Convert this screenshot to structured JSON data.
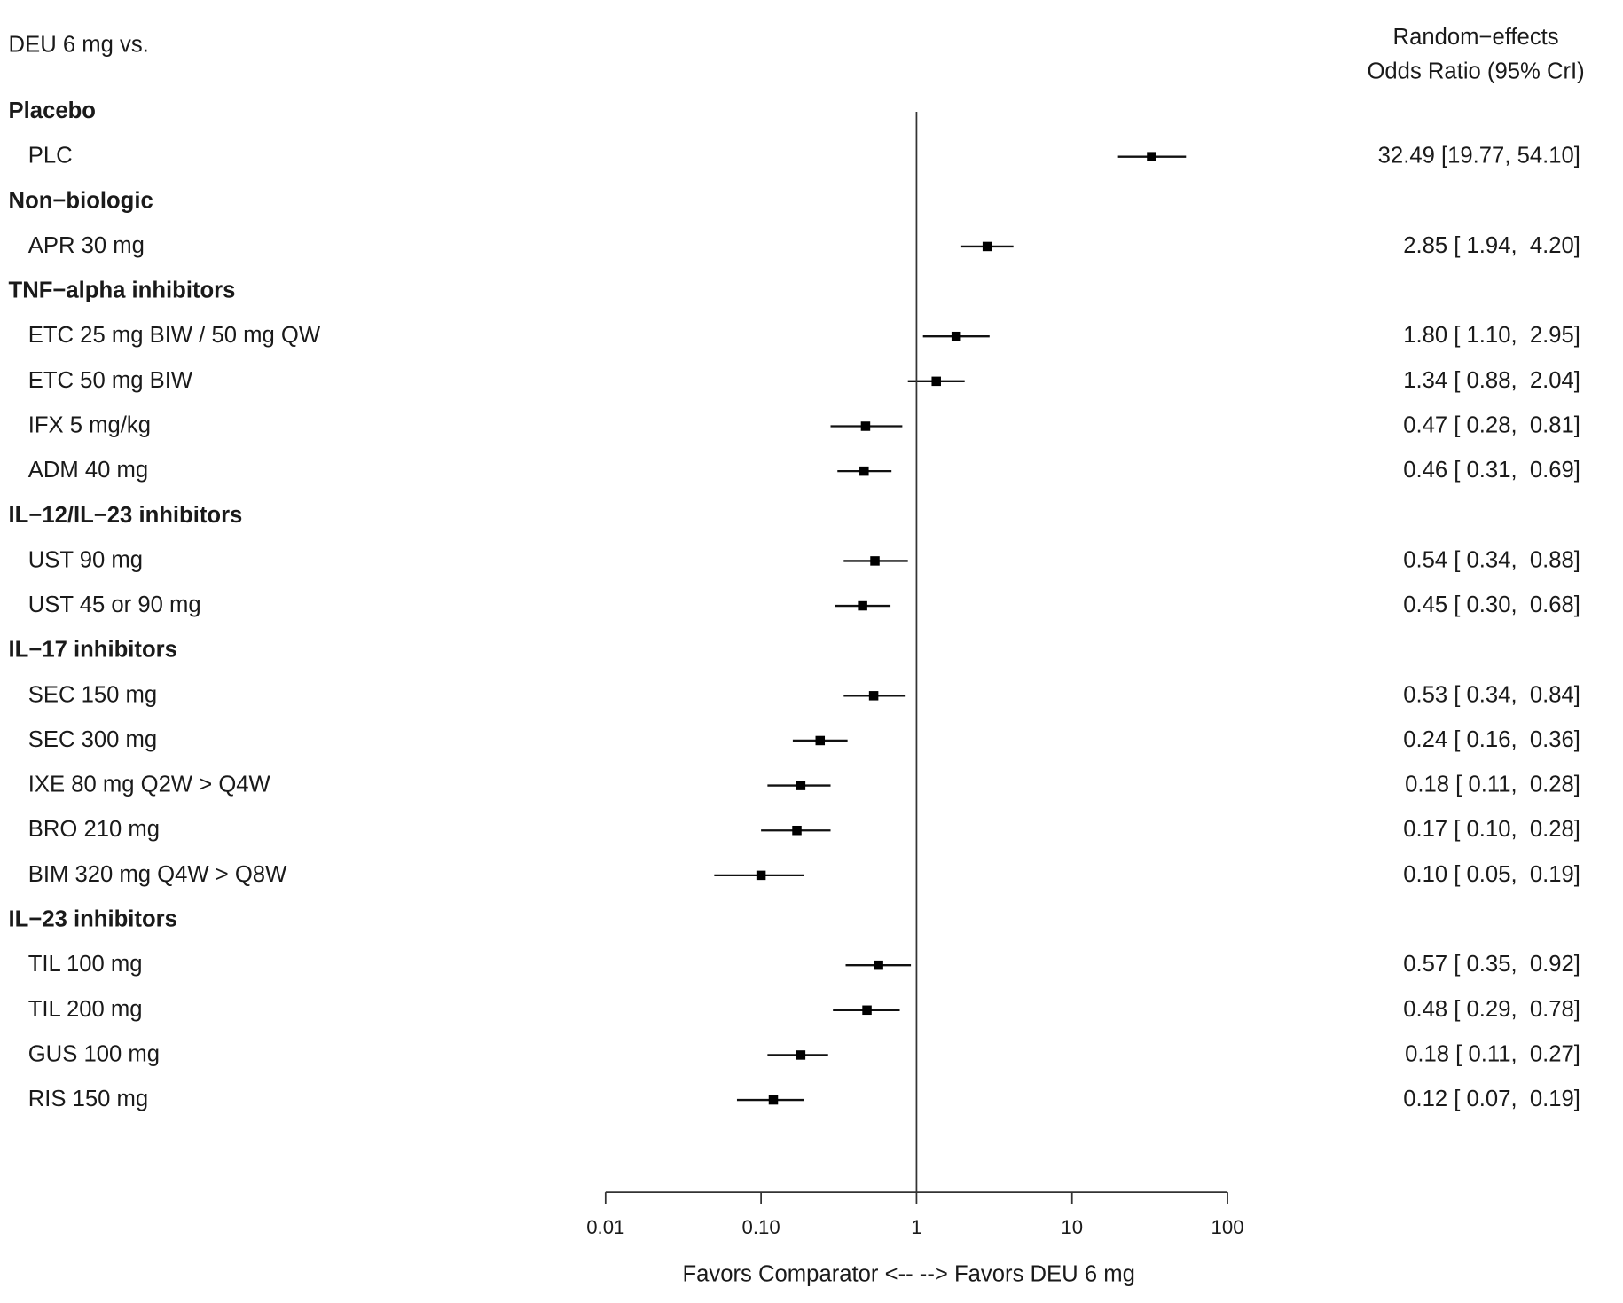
{
  "chart_data": {
    "type": "forest",
    "title": "DEU 6 mg vs.",
    "column_header": [
      "Random−effects",
      "Odds Ratio (95% CrI)"
    ],
    "xlabel": "Favors Comparator <-- --> Favors DEU 6 mg",
    "x_scale": "log",
    "xlim": [
      0.01,
      100
    ],
    "x_ticks": [
      "0.01",
      "0.10",
      "1",
      "10",
      "100"
    ],
    "reference_line": 1,
    "groups": [
      {
        "name": "Placebo",
        "rows": [
          {
            "label": "PLC",
            "or": 32.49,
            "lo": 19.77,
            "hi": 54.1,
            "text": "32.49 [19.77, 54.10]"
          }
        ]
      },
      {
        "name": "Non−biologic",
        "rows": [
          {
            "label": "APR 30 mg",
            "or": 2.85,
            "lo": 1.94,
            "hi": 4.2,
            "text": "2.85 [ 1.94,  4.20]"
          }
        ]
      },
      {
        "name": "TNF−alpha inhibitors",
        "rows": [
          {
            "label": "ETC 25 mg BIW / 50 mg QW",
            "or": 1.8,
            "lo": 1.1,
            "hi": 2.95,
            "text": "1.80 [ 1.10,  2.95]"
          },
          {
            "label": "ETC 50 mg BIW",
            "or": 1.34,
            "lo": 0.88,
            "hi": 2.04,
            "text": "1.34 [ 0.88,  2.04]"
          },
          {
            "label": "IFX 5 mg/kg",
            "or": 0.47,
            "lo": 0.28,
            "hi": 0.81,
            "text": "0.47 [ 0.28,  0.81]"
          },
          {
            "label": "ADM 40 mg",
            "or": 0.46,
            "lo": 0.31,
            "hi": 0.69,
            "text": "0.46 [ 0.31,  0.69]"
          }
        ]
      },
      {
        "name": "IL−12/IL−23 inhibitors",
        "rows": [
          {
            "label": "UST 90 mg",
            "or": 0.54,
            "lo": 0.34,
            "hi": 0.88,
            "text": "0.54 [ 0.34,  0.88]"
          },
          {
            "label": "UST 45 or 90 mg",
            "or": 0.45,
            "lo": 0.3,
            "hi": 0.68,
            "text": "0.45 [ 0.30,  0.68]"
          }
        ]
      },
      {
        "name": "IL−17 inhibitors",
        "rows": [
          {
            "label": "SEC 150 mg",
            "or": 0.53,
            "lo": 0.34,
            "hi": 0.84,
            "text": "0.53 [ 0.34,  0.84]"
          },
          {
            "label": "SEC 300 mg",
            "or": 0.24,
            "lo": 0.16,
            "hi": 0.36,
            "text": "0.24 [ 0.16,  0.36]"
          },
          {
            "label": "IXE 80 mg Q2W > Q4W",
            "or": 0.18,
            "lo": 0.11,
            "hi": 0.28,
            "text": "0.18 [ 0.11,  0.28]"
          },
          {
            "label": "BRO 210 mg",
            "or": 0.17,
            "lo": 0.1,
            "hi": 0.28,
            "text": "0.17 [ 0.10,  0.28]"
          },
          {
            "label": "BIM 320 mg Q4W > Q8W",
            "or": 0.1,
            "lo": 0.05,
            "hi": 0.19,
            "text": "0.10 [ 0.05,  0.19]"
          }
        ]
      },
      {
        "name": "IL−23 inhibitors",
        "rows": [
          {
            "label": "TIL 100 mg",
            "or": 0.57,
            "lo": 0.35,
            "hi": 0.92,
            "text": "0.57 [ 0.35,  0.92]"
          },
          {
            "label": "TIL 200 mg",
            "or": 0.48,
            "lo": 0.29,
            "hi": 0.78,
            "text": "0.48 [ 0.29,  0.78]"
          },
          {
            "label": "GUS 100 mg",
            "or": 0.18,
            "lo": 0.11,
            "hi": 0.27,
            "text": "0.18 [ 0.11,  0.27]"
          },
          {
            "label": "RIS 150 mg",
            "or": 0.12,
            "lo": 0.07,
            "hi": 0.19,
            "text": "0.12 [ 0.07,  0.19]"
          }
        ]
      }
    ]
  }
}
